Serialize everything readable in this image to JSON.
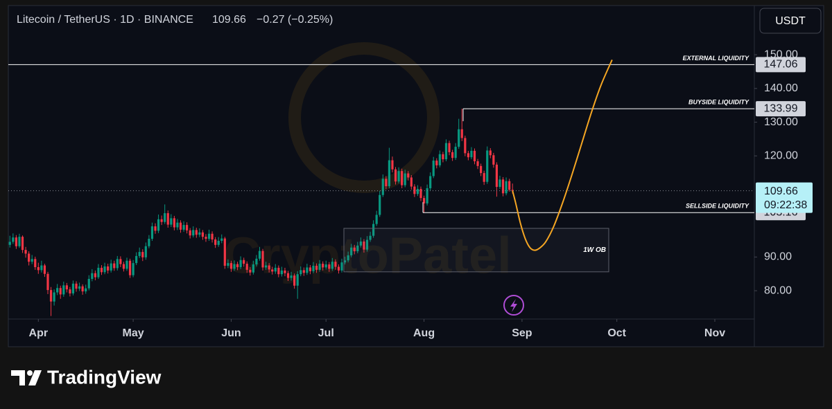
{
  "chart_data": {
    "type": "candlestick",
    "symbol": "Litecoin / TetherUS · 1D · BINANCE",
    "change": "−0.27 (−0.25%)",
    "currency": "USDT",
    "countdown": "09:22:38",
    "watermark": "CryptoPatel",
    "brand": "TradingView",
    "up_color": "#089981",
    "down_color": "#f23645",
    "xlim": [
      -0.5,
      235.5
    ],
    "xticks": [
      {
        "value": 9,
        "label": "Apr"
      },
      {
        "value": 39,
        "label": "May"
      },
      {
        "value": 70,
        "label": "Jun"
      },
      {
        "value": 100,
        "label": "Jul"
      },
      {
        "value": 131,
        "label": "Aug"
      },
      {
        "value": 162,
        "label": "Sep"
      },
      {
        "value": 192,
        "label": "Oct"
      },
      {
        "value": 223,
        "label": "Nov"
      }
    ],
    "ylim": [
      71.6,
      164.6
    ],
    "yticks": [
      {
        "value": 80,
        "label": "80.00"
      },
      {
        "value": 90,
        "label": "90.00"
      },
      {
        "value": 120,
        "label": "120.00"
      },
      {
        "value": 130,
        "label": "130.00"
      },
      {
        "value": 140,
        "label": "140.00"
      },
      {
        "value": 150,
        "label": "150.00"
      }
    ],
    "candles": {
      "open": [
        93.6,
        94.5,
        95.8,
        93.2,
        96.0,
        92.1,
        91.0,
        88.6,
        89.4,
        87.0,
        86.1,
        87.5,
        85.0,
        80.2,
        76.8,
        79.5,
        80.8,
        78.9,
        81.6,
        80.4,
        79.2,
        82.1,
        80.6,
        81.3,
        79.8,
        80.7,
        83.5,
        85.2,
        84.0,
        86.8,
        85.5,
        87.2,
        86.0,
        88.1,
        86.7,
        89.4,
        87.9,
        86.5,
        88.9,
        84.6,
        88.2,
        90.3,
        91.5,
        89.9,
        93.2,
        95.4,
        99.1,
        97.8,
        101.2,
        100.4,
        103.0,
        99.6,
        101.5,
        98.8,
        100.2,
        98.1,
        99.5,
        97.9,
        96.4,
        98.0,
        96.6,
        97.3,
        96.0,
        95.4,
        96.9,
        95.2,
        93.6,
        94.8,
        95.5,
        87.4,
        88.2,
        86.5,
        87.9,
        87.0,
        89.1,
        88.0,
        86.2,
        85.4,
        87.8,
        89.5,
        91.8,
        86.9,
        87.5,
        86.3,
        85.7,
        86.8,
        84.9,
        86.0,
        85.2,
        83.8,
        84.5,
        81.5,
        84.9,
        86.1,
        85.3,
        86.9,
        85.8,
        87.4,
        86.2,
        88.0,
        86.9,
        87.8,
        86.5,
        88.6,
        87.1,
        86.0,
        88.4,
        89.0,
        90.5,
        92.8,
        91.7,
        93.4,
        94.6,
        92.2,
        95.1,
        96.3,
        99.8,
        102.5,
        108.4,
        113.2,
        111.0,
        118.7,
        116.0,
        112.4,
        115.5,
        111.3,
        114.8,
        113.6,
        110.9,
        108.7,
        110.2,
        107.5,
        105.9,
        110.4,
        114.0,
        118.6,
        117.2,
        120.5,
        119.0,
        123.8,
        121.1,
        119.4,
        122.7,
        127.9,
        125.3,
        120.8,
        119.6,
        121.5,
        118.4,
        117.0,
        114.9,
        112.3,
        121.6,
        120.2,
        117.4,
        110.8,
        113.0,
        108.9,
        112.5,
        109.93
      ],
      "high": [
        96.3,
        97.0,
        96.5,
        96.9,
        96.4,
        93.0,
        91.7,
        90.6,
        90.1,
        88.3,
        88.9,
        88.0,
        85.6,
        81.1,
        80.4,
        82.0,
        81.5,
        82.7,
        82.3,
        81.1,
        83.0,
        82.8,
        82.4,
        81.9,
        81.8,
        84.6,
        86.4,
        86.0,
        87.9,
        87.6,
        88.3,
        88.0,
        89.2,
        88.9,
        90.3,
        90.2,
        88.6,
        89.8,
        89.5,
        89.1,
        91.4,
        92.8,
        92.3,
        94.3,
        96.5,
        100.2,
        100.0,
        102.6,
        102.3,
        105.6,
        103.8,
        102.7,
        102.2,
        101.3,
        100.9,
        100.6,
        100.3,
        98.6,
        99.1,
        98.7,
        98.5,
        98.0,
        96.8,
        98.1,
        97.6,
        95.9,
        95.9,
        96.7,
        96.0,
        89.3,
        88.9,
        89.0,
        88.6,
        90.2,
        89.8,
        88.7,
        87.0,
        88.9,
        90.6,
        93.0,
        92.4,
        88.6,
        88.2,
        87.1,
        87.9,
        87.5,
        87.1,
        86.8,
        85.9,
        85.6,
        85.1,
        85.8,
        87.2,
        86.9,
        88.0,
        87.6,
        88.5,
        88.1,
        89.1,
        88.7,
        88.9,
        88.5,
        89.7,
        89.3,
        87.8,
        89.5,
        90.1,
        91.6,
        93.9,
        93.6,
        94.5,
        95.8,
        95.3,
        96.2,
        97.5,
        100.9,
        103.7,
        109.6,
        114.5,
        114.0,
        122.4,
        119.8,
        116.7,
        116.6,
        116.2,
        115.9,
        115.5,
        114.3,
        111.6,
        111.3,
        110.9,
        108.2,
        111.5,
        115.1,
        119.7,
        119.3,
        121.6,
        121.2,
        124.9,
        124.5,
        121.8,
        123.8,
        131.0,
        134.0,
        126.0,
        121.5,
        122.6,
        122.2,
        119.1,
        117.7,
        115.6,
        122.8,
        122.3,
        120.9,
        118.1,
        114.1,
        113.7,
        113.6,
        113.2,
        111.8
      ],
      "low": [
        92.8,
        93.9,
        92.4,
        92.7,
        91.2,
        89.8,
        87.5,
        87.9,
        86.2,
        85.0,
        85.4,
        84.1,
        79.0,
        72.5,
        75.6,
        78.7,
        77.6,
        78.2,
        79.5,
        78.3,
        78.6,
        79.7,
        79.9,
        78.8,
        79.1,
        80.1,
        82.8,
        83.1,
        83.5,
        84.7,
        84.9,
        85.1,
        85.4,
        85.9,
        86.0,
        87.0,
        85.7,
        85.9,
        83.8,
        84.0,
        87.6,
        89.7,
        88.8,
        89.2,
        92.6,
        94.8,
        96.9,
        97.1,
        99.5,
        99.8,
        98.7,
        98.9,
        97.9,
        98.0,
        97.2,
        97.5,
        97.0,
        95.5,
        95.8,
        95.7,
        95.9,
        95.1,
        94.5,
        94.8,
        94.3,
        92.7,
        93.0,
        94.1,
        86.5,
        86.7,
        85.6,
        85.9,
        86.1,
        86.4,
        87.1,
        85.3,
        84.5,
        84.8,
        87.2,
        88.9,
        86.0,
        86.2,
        85.4,
        84.8,
        85.0,
        84.0,
        84.2,
        84.3,
        82.9,
        83.0,
        80.6,
        77.6,
        84.3,
        84.4,
        84.7,
        84.9,
        85.2,
        85.3,
        85.6,
        86.0,
        86.3,
        85.6,
        85.9,
        86.2,
        85.1,
        85.4,
        87.8,
        88.4,
        89.9,
        90.8,
        91.1,
        92.8,
        91.3,
        91.6,
        94.5,
        95.7,
        99.2,
        101.9,
        107.8,
        110.1,
        110.4,
        115.1,
        111.5,
        111.8,
        110.4,
        110.7,
        112.7,
        110.0,
        107.8,
        108.1,
        106.6,
        103.2,
        105.3,
        109.8,
        113.4,
        116.3,
        116.6,
        118.1,
        118.4,
        120.2,
        118.5,
        118.8,
        122.1,
        124.4,
        119.9,
        118.7,
        119.0,
        117.5,
        116.1,
        114.0,
        111.4,
        111.7,
        119.3,
        116.5,
        107.9,
        110.2,
        108.0,
        108.3,
        109.4,
        108.8
      ],
      "close": [
        94.5,
        95.8,
        93.2,
        96.0,
        92.1,
        91.0,
        88.6,
        89.4,
        87.0,
        86.1,
        87.5,
        85.0,
        80.2,
        76.8,
        79.5,
        80.8,
        78.9,
        81.6,
        80.4,
        79.2,
        82.1,
        80.6,
        81.3,
        79.8,
        80.7,
        83.5,
        85.2,
        84.0,
        86.8,
        85.5,
        87.2,
        86.0,
        88.1,
        86.7,
        89.4,
        87.9,
        86.5,
        88.9,
        84.6,
        88.2,
        90.3,
        91.5,
        89.9,
        93.2,
        95.4,
        99.1,
        97.8,
        101.2,
        100.4,
        103.0,
        99.6,
        101.5,
        98.8,
        100.2,
        98.1,
        99.5,
        97.9,
        96.4,
        98.0,
        96.6,
        97.3,
        96.0,
        95.4,
        96.9,
        95.2,
        93.6,
        94.8,
        95.5,
        87.4,
        88.2,
        86.5,
        87.9,
        87.0,
        89.1,
        88.0,
        86.2,
        85.4,
        87.8,
        89.5,
        91.8,
        86.9,
        87.5,
        86.3,
        85.7,
        86.8,
        84.9,
        86.0,
        85.2,
        83.8,
        84.5,
        81.5,
        84.9,
        86.1,
        85.3,
        86.9,
        85.8,
        87.4,
        86.2,
        88.0,
        86.9,
        87.8,
        86.5,
        88.6,
        87.1,
        86.0,
        88.4,
        89.0,
        90.5,
        92.8,
        91.7,
        93.4,
        94.6,
        92.2,
        95.1,
        96.3,
        99.8,
        102.5,
        108.4,
        113.2,
        111.0,
        118.7,
        116.0,
        112.4,
        115.5,
        111.3,
        114.8,
        113.6,
        110.9,
        108.7,
        110.2,
        107.5,
        105.9,
        110.4,
        114.0,
        118.6,
        117.2,
        120.5,
        119.0,
        123.8,
        121.1,
        119.4,
        122.7,
        127.9,
        125.3,
        120.8,
        119.6,
        121.5,
        118.4,
        117.0,
        114.9,
        112.3,
        121.6,
        120.2,
        117.4,
        110.8,
        113.0,
        108.9,
        112.5,
        109.93,
        109.66
      ]
    },
    "levels": [
      {
        "label": "EXTERNAL LIQUIDITY",
        "value": 147.06
      },
      {
        "label": "BUYSIDE LIQUIDITY",
        "value": 133.99
      },
      {
        "label": "SELLSIDE LIQUIDITY",
        "value": 103.16
      }
    ],
    "order_block": {
      "label": "1W OB",
      "top": 98.5,
      "bottom": 85.6
    },
    "projection": {
      "color": "#f5a623",
      "x": [
        159,
        160,
        161.5,
        163,
        164.5,
        166,
        167.5,
        169.5,
        172,
        175,
        178,
        181,
        184,
        187,
        190.5
      ],
      "y": [
        109.66,
        106,
        100,
        95.5,
        92.8,
        92,
        92.6,
        94.5,
        99,
        106.5,
        115,
        124,
        133,
        141,
        148.5
      ]
    }
  }
}
